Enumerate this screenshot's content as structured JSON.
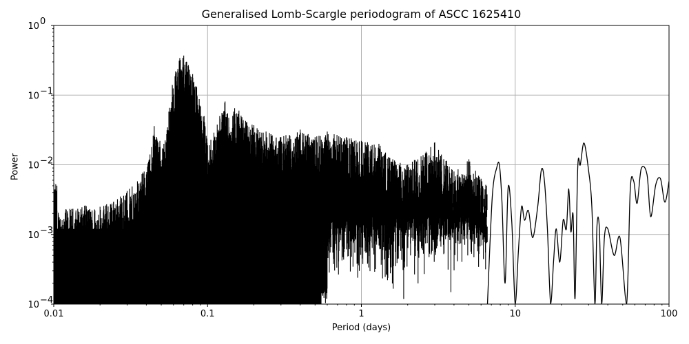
{
  "chart_data": {
    "type": "line",
    "title": "Generalised Lomb-Scargle periodogram of ASCC 1625410",
    "xlabel": "Period (days)",
    "ylabel": "Power",
    "xscale": "log",
    "yscale": "log",
    "xlim": [
      0.01,
      100
    ],
    "ylim": [
      0.0001,
      1
    ],
    "grid": true,
    "line_color": "#000000",
    "grid_color": "#b0b0b0",
    "x_ticks": [
      {
        "value": 0.01,
        "label": "0.01"
      },
      {
        "value": 0.1,
        "label": "0.1"
      },
      {
        "value": 1,
        "label": "1"
      },
      {
        "value": 10,
        "label": "10"
      },
      {
        "value": 100,
        "label": "100"
      }
    ],
    "y_ticks": [
      {
        "value": 0.0001,
        "base": "10",
        "exp": "−4"
      },
      {
        "value": 0.001,
        "base": "10",
        "exp": "−3"
      },
      {
        "value": 0.01,
        "base": "10",
        "exp": "−2"
      },
      {
        "value": 0.1,
        "base": "10",
        "exp": "−1"
      },
      {
        "value": 1,
        "base": "10",
        "exp": "0"
      }
    ],
    "noise_floor_region": {
      "period_from": 0.01,
      "period_to": 0.6,
      "note": "dense forest of peaks reaching down to below 1e-4"
    },
    "peaks": [
      {
        "period": 0.0105,
        "power": 0.0022
      },
      {
        "period": 0.012,
        "power": 0.0023
      },
      {
        "period": 0.016,
        "power": 0.0026
      },
      {
        "period": 0.02,
        "power": 0.0025
      },
      {
        "period": 0.03,
        "power": 0.0042
      },
      {
        "period": 0.035,
        "power": 0.0058
      },
      {
        "period": 0.041,
        "power": 0.0105
      },
      {
        "period": 0.045,
        "power": 0.036
      },
      {
        "period": 0.049,
        "power": 0.022
      },
      {
        "period": 0.052,
        "power": 0.02
      },
      {
        "period": 0.056,
        "power": 0.058
      },
      {
        "period": 0.059,
        "power": 0.14
      },
      {
        "period": 0.062,
        "power": 0.22
      },
      {
        "period": 0.066,
        "power": 0.34
      },
      {
        "period": 0.07,
        "power": 0.37
      },
      {
        "period": 0.075,
        "power": 0.27
      },
      {
        "period": 0.08,
        "power": 0.2
      },
      {
        "period": 0.085,
        "power": 0.13
      },
      {
        "period": 0.095,
        "power": 0.05
      },
      {
        "period": 0.1,
        "power": 0.019
      },
      {
        "period": 0.11,
        "power": 0.029
      },
      {
        "period": 0.12,
        "power": 0.05
      },
      {
        "period": 0.13,
        "power": 0.081
      },
      {
        "period": 0.135,
        "power": 0.055
      },
      {
        "period": 0.15,
        "power": 0.065
      },
      {
        "period": 0.16,
        "power": 0.06
      },
      {
        "period": 0.18,
        "power": 0.041
      },
      {
        "period": 0.2,
        "power": 0.037
      },
      {
        "period": 0.24,
        "power": 0.03
      },
      {
        "period": 0.3,
        "power": 0.025
      },
      {
        "period": 0.4,
        "power": 0.032
      },
      {
        "period": 0.5,
        "power": 0.025
      },
      {
        "period": 0.6,
        "power": 0.03
      },
      {
        "period": 0.8,
        "power": 0.025
      },
      {
        "period": 1.0,
        "power": 0.022
      },
      {
        "period": 1.3,
        "power": 0.02
      },
      {
        "period": 1.6,
        "power": 0.012
      },
      {
        "period": 2.0,
        "power": 0.01
      },
      {
        "period": 3.0,
        "power": 0.021
      },
      {
        "period": 4.0,
        "power": 0.008
      },
      {
        "period": 5.0,
        "power": 0.012
      },
      {
        "period": 6.5,
        "power": 0.005
      },
      {
        "period": 8.5,
        "power": 0.01
      },
      {
        "period": 12.5,
        "power": 0.0078
      },
      {
        "period": 15.0,
        "power": 0.0062
      },
      {
        "period": 19.5,
        "power": 0.0065
      },
      {
        "period": 22.0,
        "power": 0.0105
      },
      {
        "period": 26.0,
        "power": 0.0103
      },
      {
        "period": 28.0,
        "power": 0.0205
      },
      {
        "period": 31.0,
        "power": 0.0084
      },
      {
        "period": 36.0,
        "power": 0.0012
      },
      {
        "period": 41.0,
        "power": 0.0005
      },
      {
        "period": 58.0,
        "power": 0.0055
      },
      {
        "period": 67.0,
        "power": 0.0088
      },
      {
        "period": 85.0,
        "power": 0.0062
      },
      {
        "period": 100.0,
        "power": 0.0055
      }
    ],
    "long_period_curve": [
      [
        6.6,
        0.0001
      ],
      [
        7.1,
        0.0035
      ],
      [
        7.6,
        0.0092
      ],
      [
        7.9,
        0.0098
      ],
      [
        8.2,
        0.003
      ],
      [
        8.6,
        0.0002
      ],
      [
        9.0,
        0.0047
      ],
      [
        9.5,
        0.0015
      ],
      [
        10.0,
        0.0001
      ],
      [
        10.5,
        0.0006
      ],
      [
        11.0,
        0.0025
      ],
      [
        11.5,
        0.0016
      ],
      [
        12.2,
        0.0022
      ],
      [
        13.0,
        0.0009
      ],
      [
        14.0,
        0.0025
      ],
      [
        14.8,
        0.0085
      ],
      [
        15.5,
        0.0058
      ],
      [
        16.2,
        0.0012
      ],
      [
        17.0,
        0.0001
      ],
      [
        17.8,
        0.00045
      ],
      [
        18.5,
        0.0012
      ],
      [
        19.5,
        0.0004
      ],
      [
        20.5,
        0.0016
      ],
      [
        21.5,
        0.0012
      ],
      [
        22.3,
        0.0045
      ],
      [
        23.0,
        0.0011
      ],
      [
        23.8,
        0.0019
      ],
      [
        24.5,
        0.00012
      ],
      [
        25.5,
        0.009
      ],
      [
        26.5,
        0.01
      ],
      [
        28.0,
        0.0205
      ],
      [
        30.0,
        0.0082
      ],
      [
        31.5,
        0.0025
      ],
      [
        33.0,
        0.0001
      ],
      [
        34.0,
        0.0013
      ],
      [
        35.2,
        0.0013
      ],
      [
        36.5,
        0.0001
      ],
      [
        38.0,
        0.0009
      ],
      [
        40.0,
        0.0012
      ],
      [
        44.0,
        0.0005
      ],
      [
        48.0,
        0.0009
      ],
      [
        53.0,
        0.0001
      ],
      [
        56.0,
        0.0045
      ],
      [
        59.0,
        0.0058
      ],
      [
        62.0,
        0.0028
      ],
      [
        66.0,
        0.0088
      ],
      [
        72.0,
        0.0072
      ],
      [
        76.0,
        0.0018
      ],
      [
        82.0,
        0.0052
      ],
      [
        88.0,
        0.0063
      ],
      [
        94.0,
        0.0029
      ],
      [
        100.0,
        0.0058
      ]
    ]
  }
}
